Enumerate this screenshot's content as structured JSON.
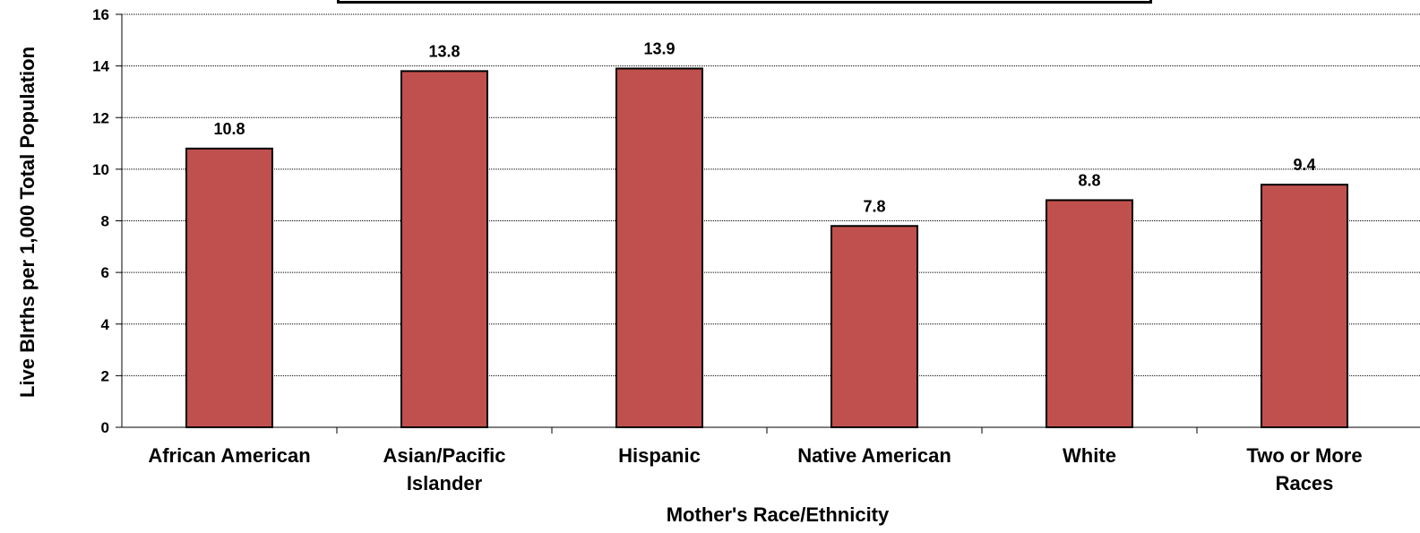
{
  "chart_data": {
    "type": "bar",
    "categories": [
      [
        "African American"
      ],
      [
        "Asian/Pacific",
        "Islander"
      ],
      [
        "Hispanic"
      ],
      [
        "Native American"
      ],
      [
        "White"
      ],
      [
        "Two or More",
        "Races"
      ]
    ],
    "values": [
      10.8,
      13.8,
      13.9,
      7.8,
      8.8,
      9.4
    ],
    "data_labels": [
      "10.8",
      "13.8",
      "13.9",
      "7.8",
      "8.8",
      "9.4"
    ],
    "xlabel": "Mother's Race/Ethnicity",
    "ylabel": "Live BIrths per 1,000 Total Population",
    "ylim": [
      0,
      16
    ],
    "yticks": [
      0,
      2,
      4,
      6,
      8,
      10,
      12,
      14,
      16
    ],
    "grid": true,
    "bar_color": "#C0504D"
  }
}
